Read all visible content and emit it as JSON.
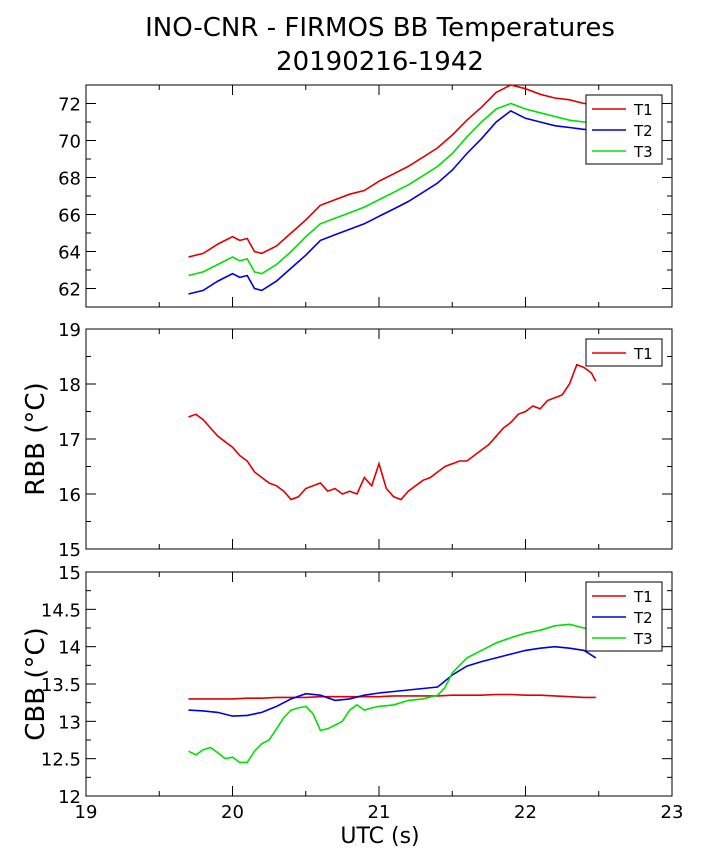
{
  "title_line1": "INO-CNR - FIRMOS BB Temperatures",
  "title_line2": "20190216-1942",
  "xlabel": "UTC (s)",
  "x_ticks": [
    "19",
    "20",
    "21",
    "22",
    "23"
  ],
  "chart_data": [
    {
      "type": "line",
      "ylabel": "",
      "xlim": [
        19,
        23
      ],
      "ylim": [
        61,
        73
      ],
      "yticks": [
        62,
        64,
        66,
        68,
        70,
        72
      ],
      "legend_position": "top-right",
      "series": [
        {
          "name": "T1",
          "color": "#e00000",
          "x": [
            19.7,
            19.8,
            19.9,
            20.0,
            20.05,
            20.1,
            20.15,
            20.2,
            20.3,
            20.4,
            20.5,
            20.6,
            20.7,
            20.8,
            20.9,
            21.0,
            21.1,
            21.2,
            21.3,
            21.4,
            21.5,
            21.6,
            21.7,
            21.8,
            21.9,
            22.0,
            22.1,
            22.2,
            22.3,
            22.4,
            22.48
          ],
          "y": [
            63.7,
            63.9,
            64.4,
            64.8,
            64.6,
            64.7,
            64.0,
            63.9,
            64.3,
            65.0,
            65.7,
            66.5,
            66.8,
            67.1,
            67.3,
            67.8,
            68.2,
            68.6,
            69.1,
            69.6,
            70.3,
            71.1,
            71.8,
            72.6,
            73.0,
            72.8,
            72.5,
            72.3,
            72.2,
            72.0,
            72.0
          ]
        },
        {
          "name": "T2",
          "color": "#0000e0",
          "x": [
            19.7,
            19.8,
            19.9,
            20.0,
            20.05,
            20.1,
            20.15,
            20.2,
            20.3,
            20.4,
            20.5,
            20.6,
            20.7,
            20.8,
            20.9,
            21.0,
            21.1,
            21.2,
            21.3,
            21.4,
            21.5,
            21.6,
            21.7,
            21.8,
            21.9,
            22.0,
            22.1,
            22.2,
            22.3,
            22.4,
            22.48
          ],
          "y": [
            61.7,
            61.9,
            62.4,
            62.8,
            62.6,
            62.7,
            62.0,
            61.9,
            62.4,
            63.1,
            63.8,
            64.6,
            64.9,
            65.2,
            65.5,
            65.9,
            66.3,
            66.7,
            67.2,
            67.7,
            68.4,
            69.3,
            70.1,
            71.0,
            71.6,
            71.2,
            71.0,
            70.8,
            70.7,
            70.6,
            70.6
          ]
        },
        {
          "name": "T3",
          "color": "#00e000",
          "x": [
            19.7,
            19.8,
            19.9,
            20.0,
            20.05,
            20.1,
            20.15,
            20.2,
            20.3,
            20.4,
            20.5,
            20.6,
            20.7,
            20.8,
            20.9,
            21.0,
            21.1,
            21.2,
            21.3,
            21.4,
            21.5,
            21.6,
            21.7,
            21.8,
            21.9,
            22.0,
            22.1,
            22.2,
            22.3,
            22.4,
            22.48
          ],
          "y": [
            62.7,
            62.9,
            63.3,
            63.7,
            63.5,
            63.6,
            62.9,
            62.8,
            63.3,
            64.0,
            64.8,
            65.5,
            65.8,
            66.1,
            66.4,
            66.8,
            67.2,
            67.6,
            68.1,
            68.6,
            69.3,
            70.2,
            71.0,
            71.7,
            72.0,
            71.7,
            71.5,
            71.3,
            71.1,
            71.0,
            71.0
          ]
        }
      ]
    },
    {
      "type": "line",
      "ylabel": "RBB (°C)",
      "xlim": [
        19,
        23
      ],
      "ylim": [
        15,
        19
      ],
      "yticks": [
        15,
        16,
        17,
        18,
        19
      ],
      "legend_position": "top-right",
      "series": [
        {
          "name": "T1",
          "color": "#e00000",
          "x": [
            19.7,
            19.75,
            19.8,
            19.85,
            19.9,
            19.95,
            20.0,
            20.05,
            20.1,
            20.15,
            20.2,
            20.25,
            20.3,
            20.35,
            20.4,
            20.45,
            20.5,
            20.55,
            20.6,
            20.65,
            20.7,
            20.75,
            20.8,
            20.85,
            20.9,
            20.95,
            21.0,
            21.05,
            21.1,
            21.15,
            21.2,
            21.25,
            21.3,
            21.35,
            21.4,
            21.45,
            21.5,
            21.55,
            21.6,
            21.65,
            21.7,
            21.75,
            21.8,
            21.85,
            21.9,
            21.95,
            22.0,
            22.05,
            22.1,
            22.15,
            22.2,
            22.25,
            22.3,
            22.35,
            22.4,
            22.45,
            22.48
          ],
          "y": [
            17.4,
            17.45,
            17.35,
            17.2,
            17.05,
            16.95,
            16.85,
            16.7,
            16.6,
            16.4,
            16.3,
            16.2,
            16.15,
            16.05,
            15.9,
            15.95,
            16.1,
            16.15,
            16.2,
            16.05,
            16.1,
            16.0,
            16.05,
            16.0,
            16.3,
            16.15,
            16.55,
            16.1,
            15.95,
            15.9,
            16.05,
            16.15,
            16.25,
            16.3,
            16.4,
            16.5,
            16.55,
            16.6,
            16.6,
            16.7,
            16.8,
            16.9,
            17.05,
            17.2,
            17.3,
            17.45,
            17.5,
            17.6,
            17.55,
            17.7,
            17.75,
            17.8,
            18.0,
            18.35,
            18.3,
            18.2,
            18.05
          ]
        }
      ]
    },
    {
      "type": "line",
      "ylabel": "CBB (°C)",
      "xlim": [
        19,
        23
      ],
      "ylim": [
        12,
        15
      ],
      "yticks": [
        12,
        12.5,
        13,
        13.5,
        14,
        14.5,
        15
      ],
      "legend_position": "top-right",
      "series": [
        {
          "name": "T1",
          "color": "#e00000",
          "x": [
            19.7,
            19.8,
            19.9,
            20.0,
            20.1,
            20.2,
            20.3,
            20.4,
            20.5,
            20.6,
            20.7,
            20.8,
            20.9,
            21.0,
            21.1,
            21.2,
            21.3,
            21.4,
            21.5,
            21.6,
            21.7,
            21.8,
            21.9,
            22.0,
            22.1,
            22.2,
            22.3,
            22.4,
            22.48
          ],
          "y": [
            13.3,
            13.3,
            13.3,
            13.3,
            13.31,
            13.31,
            13.32,
            13.32,
            13.32,
            13.33,
            13.33,
            13.33,
            13.33,
            13.33,
            13.34,
            13.34,
            13.34,
            13.34,
            13.35,
            13.35,
            13.35,
            13.36,
            13.36,
            13.35,
            13.35,
            13.34,
            13.33,
            13.32,
            13.32
          ]
        },
        {
          "name": "T2",
          "color": "#0000e0",
          "x": [
            19.7,
            19.8,
            19.9,
            20.0,
            20.1,
            20.2,
            20.3,
            20.4,
            20.5,
            20.6,
            20.7,
            20.8,
            20.9,
            21.0,
            21.1,
            21.2,
            21.3,
            21.4,
            21.5,
            21.6,
            21.7,
            21.8,
            21.9,
            22.0,
            22.1,
            22.2,
            22.3,
            22.4,
            22.48
          ],
          "y": [
            13.15,
            13.14,
            13.12,
            13.07,
            13.08,
            13.12,
            13.2,
            13.3,
            13.37,
            13.35,
            13.28,
            13.3,
            13.35,
            13.38,
            13.4,
            13.42,
            13.44,
            13.46,
            13.62,
            13.74,
            13.8,
            13.85,
            13.9,
            13.95,
            13.98,
            14.0,
            13.98,
            13.95,
            13.85
          ]
        },
        {
          "name": "T3",
          "color": "#00e000",
          "x": [
            19.7,
            19.75,
            19.8,
            19.85,
            19.9,
            19.95,
            20.0,
            20.05,
            20.1,
            20.15,
            20.2,
            20.25,
            20.3,
            20.35,
            20.4,
            20.45,
            20.5,
            20.55,
            20.6,
            20.65,
            20.7,
            20.75,
            20.8,
            20.85,
            20.9,
            20.95,
            21.0,
            21.1,
            21.2,
            21.3,
            21.4,
            21.45,
            21.5,
            21.6,
            21.7,
            21.8,
            21.9,
            22.0,
            22.1,
            22.2,
            22.3,
            22.4,
            22.48
          ],
          "y": [
            12.6,
            12.55,
            12.62,
            12.65,
            12.58,
            12.5,
            12.52,
            12.45,
            12.45,
            12.6,
            12.7,
            12.75,
            12.9,
            13.05,
            13.15,
            13.18,
            13.2,
            13.1,
            12.88,
            12.9,
            12.95,
            13.0,
            13.15,
            13.22,
            13.15,
            13.18,
            13.2,
            13.22,
            13.28,
            13.3,
            13.35,
            13.45,
            13.65,
            13.85,
            13.95,
            14.05,
            14.12,
            14.18,
            14.22,
            14.28,
            14.3,
            14.25,
            14.2
          ]
        }
      ]
    }
  ]
}
